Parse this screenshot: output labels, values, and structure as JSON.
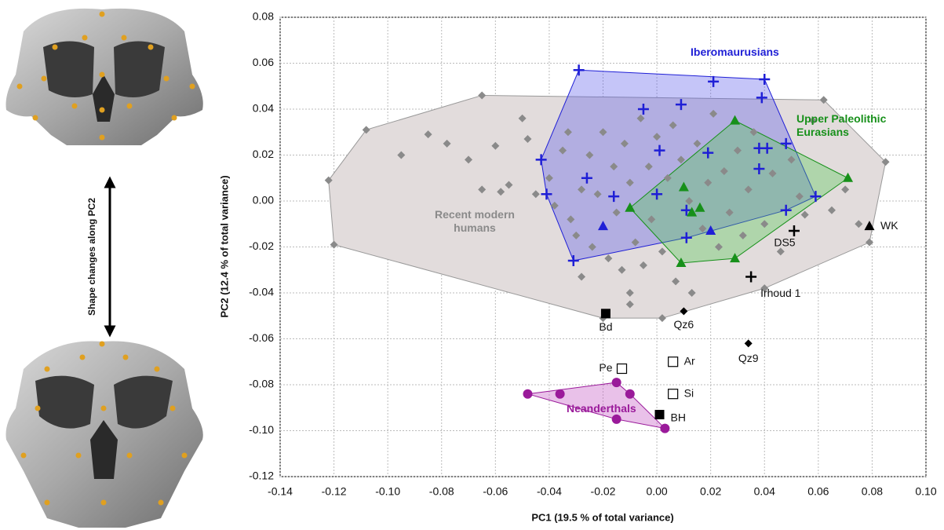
{
  "chart_data": {
    "type": "scatter",
    "x_label": "PC1 (19.5 % of total variance)",
    "y_label": "PC2 (12.4 % of total variance)",
    "annotation": "Shape changes along PC2",
    "xlim": [
      -0.14,
      0.1
    ],
    "ylim": [
      -0.12,
      0.08
    ],
    "xticks": [
      -0.14,
      -0.12,
      {
        "value": -0.1,
        "label": "-0.10"
      },
      -0.08,
      -0.06,
      -0.04,
      -0.02,
      {
        "value": 0,
        "label": "0.00"
      },
      0.02,
      0.04,
      0.06,
      0.08,
      {
        "value": 0.1,
        "label": "0.10"
      }
    ],
    "yticks": [
      0.08,
      0.06,
      0.04,
      0.02,
      {
        "value": 0,
        "label": "0.00"
      },
      -0.02,
      -0.04,
      -0.06,
      -0.08,
      {
        "value": -0.1,
        "label": "-0.10"
      },
      -0.12
    ],
    "grid": true,
    "series": [
      {
        "name": "Recent modern humans",
        "color": "#8a8a8a",
        "hull_color": "#e2dcdc",
        "marker": "diamond",
        "x": [
          -0.122,
          -0.108,
          -0.12,
          -0.095,
          -0.085,
          -0.078,
          -0.07,
          -0.065,
          -0.06,
          -0.065,
          -0.058,
          -0.055,
          -0.05,
          -0.048,
          -0.045,
          -0.04,
          -0.038,
          -0.035,
          -0.033,
          -0.032,
          -0.03,
          -0.028,
          -0.025,
          -0.024,
          -0.022,
          -0.02,
          -0.018,
          -0.016,
          -0.015,
          -0.013,
          -0.012,
          -0.01,
          -0.008,
          -0.006,
          -0.005,
          -0.003,
          -0.002,
          0,
          0.002,
          0.004,
          0.006,
          0.007,
          0.009,
          0.012,
          0.013,
          0.015,
          0.017,
          0.019,
          0.021,
          0.023,
          0.025,
          0.027,
          0.03,
          0.032,
          0.034,
          0.036,
          0.04,
          0.043,
          0.046,
          0.05,
          0.053,
          0.055,
          0.058,
          0.062,
          0.065,
          0.07,
          0.075,
          0.079,
          0.085,
          -0.02,
          0.002,
          -0.01,
          0.04,
          -0.028,
          -0.01
        ],
        "values": [
          0.009,
          0.031,
          -0.019,
          0.02,
          0.029,
          0.025,
          0.018,
          0.046,
          0.024,
          0.005,
          0.004,
          0.007,
          0.036,
          0.027,
          0.003,
          0.01,
          -0.002,
          0.022,
          0.03,
          -0.008,
          -0.015,
          0.005,
          0.02,
          -0.02,
          0.003,
          0.03,
          -0.025,
          0.015,
          -0.005,
          -0.03,
          0.025,
          0.008,
          -0.018,
          0.036,
          -0.028,
          0.015,
          -0.008,
          0.028,
          -0.022,
          0.01,
          0.033,
          -0.035,
          0.018,
          0,
          -0.04,
          0.025,
          -0.012,
          0.008,
          0.038,
          -0.02,
          0.013,
          -0.005,
          0.022,
          -0.015,
          0.005,
          0.03,
          -0.01,
          0.012,
          -0.022,
          0.018,
          0.002,
          -0.006,
          0.035,
          0.044,
          -0.004,
          0.005,
          -0.01,
          -0.018,
          0.017,
          -0.051,
          -0.051,
          -0.045,
          -0.038,
          -0.033,
          -0.04
        ]
      },
      {
        "name": "Iberomaurusians",
        "color": "#1f1fd6",
        "hull_color": "rgba(90,90,235,0.35)",
        "marker": "cross",
        "x": [
          -0.029,
          0.021,
          0.04,
          0.039,
          -0.005,
          0.009,
          -0.043,
          0.001,
          0.019,
          0.038,
          0.041,
          0.048,
          0.038,
          -0.041,
          -0.026,
          -0.016,
          0,
          0.059,
          0.011,
          0.048,
          0.011,
          -0.031
        ],
        "values": [
          0.057,
          0.052,
          0.053,
          0.045,
          0.04,
          0.042,
          0.018,
          0.022,
          0.021,
          0.023,
          0.023,
          0.025,
          0.014,
          0.003,
          0.01,
          0.002,
          0.003,
          0.002,
          -0.004,
          -0.004,
          -0.016,
          -0.026
        ]
      },
      {
        "name": "Upper Paleolithic Eurasians",
        "color": "#17901a",
        "hull_color": "rgba(80,200,80,0.35)",
        "marker": "triangle",
        "x": [
          0.029,
          0.071,
          -0.01,
          0.01,
          0.013,
          0.016,
          0.029,
          0.009
        ],
        "values": [
          0.035,
          0.01,
          -0.003,
          0.006,
          -0.005,
          -0.003,
          -0.025,
          -0.027
        ]
      },
      {
        "color": "#1f1fd6",
        "marker": "triangle",
        "x": [
          -0.02,
          0.02
        ],
        "values": [
          -0.011,
          -0.013
        ]
      },
      {
        "name": "Neanderthals",
        "color": "#9a1a9a",
        "hull_color": "rgba(200,100,200,0.4)",
        "marker": "circle",
        "x": [
          -0.048,
          -0.036,
          -0.015,
          -0.01,
          -0.015,
          0.003
        ],
        "values": [
          -0.084,
          -0.084,
          -0.079,
          -0.084,
          -0.095,
          -0.099
        ]
      }
    ],
    "specimens": [
      {
        "label": "Bd",
        "x": -0.019,
        "y": -0.049,
        "marker": "square"
      },
      {
        "label": "Qz6",
        "x": 0.01,
        "y": -0.048,
        "marker": "diamond"
      },
      {
        "label": "Qz9",
        "x": 0.034,
        "y": -0.062,
        "marker": "diamond"
      },
      {
        "label": "Pe",
        "x": -0.013,
        "y": -0.073,
        "marker": "open-square"
      },
      {
        "label": "Ar",
        "x": 0.006,
        "y": -0.07,
        "marker": "open-square"
      },
      {
        "label": "Si",
        "x": 0.006,
        "y": -0.084,
        "marker": "open-square"
      },
      {
        "label": "BH",
        "x": 0.001,
        "y": -0.093,
        "marker": "square"
      },
      {
        "label": "DS5",
        "x": 0.051,
        "y": -0.013,
        "marker": "cross"
      },
      {
        "label": "Irhoud 1",
        "x": 0.035,
        "y": -0.033,
        "marker": "cross"
      },
      {
        "label": "WK",
        "x": 0.079,
        "y": -0.011,
        "marker": "triangle"
      }
    ]
  }
}
